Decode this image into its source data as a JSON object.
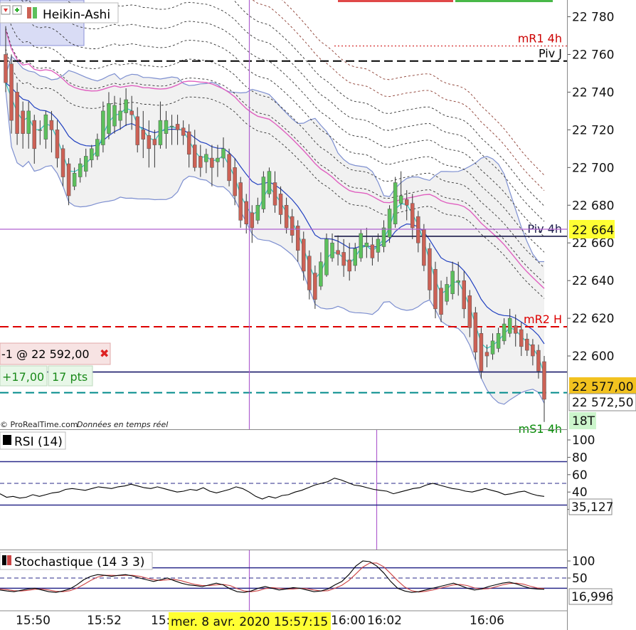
{
  "chart_data": [
    {
      "type": "candlestick",
      "title": "Heikin-Ashi",
      "y_axis_ticks": [
        "22 780",
        "22 760",
        "22 740",
        "22 720",
        "22 700",
        "22 680",
        "22 660",
        "22 640",
        "22 620",
        "22 600"
      ],
      "ylim": [
        22563,
        22787
      ],
      "x_tick_labels": [
        "15:50",
        "15:52",
        "15:",
        "16:00",
        "16:02",
        "16:06"
      ],
      "crosshair_time_label": "mer. 8 avr. 2020 15:57:15",
      "crosshair_price_label": "22 664",
      "current_price_label": "22 577,00",
      "second_price_label": "22 572,50",
      "countdown_label": "18T",
      "levels": [
        {
          "label": "mR1 4h",
          "value": 22764.5,
          "color": "#cc0000",
          "style": "dotted"
        },
        {
          "label": "Piv J",
          "value": 22756.5,
          "color": "#000000",
          "style": "dashed"
        },
        {
          "label": "Piv 4h",
          "value": 22663.5,
          "color": "#1a1a4a",
          "style": "solid"
        },
        {
          "label": "mR2 H",
          "value": 22615.5,
          "color": "#dd0000",
          "style": "dashed"
        },
        {
          "label": "",
          "value": 22591.5,
          "color": "#1a1a6a",
          "style": "solid"
        },
        {
          "label": "",
          "value": 22580.5,
          "color": "#008b8b",
          "style": "dashed"
        },
        {
          "label": "mS1 4h",
          "value": 22562,
          "color": "#008800",
          "style": "solid"
        }
      ],
      "candles": [
        {
          "o": 22760,
          "h": 22775,
          "l": 22740,
          "c": 22745
        },
        {
          "o": 22755,
          "h": 22760,
          "l": 22718,
          "c": 22725
        },
        {
          "o": 22740,
          "h": 22745,
          "l": 22712,
          "c": 22718
        },
        {
          "o": 22730,
          "h": 22735,
          "l": 22710,
          "c": 22718
        },
        {
          "o": 22718,
          "h": 22735,
          "l": 22710,
          "c": 22730
        },
        {
          "o": 22725,
          "h": 22728,
          "l": 22702,
          "c": 22710
        },
        {
          "o": 22720,
          "h": 22725,
          "l": 22712,
          "c": 22720
        },
        {
          "o": 22715,
          "h": 22730,
          "l": 22710,
          "c": 22728
        },
        {
          "o": 22725,
          "h": 22730,
          "l": 22708,
          "c": 22720
        },
        {
          "o": 22720,
          "h": 22725,
          "l": 22700,
          "c": 22705
        },
        {
          "o": 22710,
          "h": 22712,
          "l": 22690,
          "c": 22695
        },
        {
          "o": 22702,
          "h": 22705,
          "l": 22680,
          "c": 22685
        },
        {
          "o": 22690,
          "h": 22700,
          "l": 22688,
          "c": 22697
        },
        {
          "o": 22695,
          "h": 22705,
          "l": 22692,
          "c": 22702
        },
        {
          "o": 22698,
          "h": 22710,
          "l": 22695,
          "c": 22706
        },
        {
          "o": 22704,
          "h": 22712,
          "l": 22700,
          "c": 22710
        },
        {
          "o": 22706,
          "h": 22718,
          "l": 22704,
          "c": 22715
        },
        {
          "o": 22712,
          "h": 22735,
          "l": 22708,
          "c": 22730
        },
        {
          "o": 22718,
          "h": 22740,
          "l": 22715,
          "c": 22734
        },
        {
          "o": 22722,
          "h": 22738,
          "l": 22718,
          "c": 22733
        },
        {
          "o": 22725,
          "h": 22737,
          "l": 22720,
          "c": 22730
        },
        {
          "o": 22729,
          "h": 22742,
          "l": 22722,
          "c": 22736
        },
        {
          "o": 22730,
          "h": 22738,
          "l": 22720,
          "c": 22728
        },
        {
          "o": 22727,
          "h": 22732,
          "l": 22708,
          "c": 22712
        },
        {
          "o": 22720,
          "h": 22730,
          "l": 22705,
          "c": 22715
        },
        {
          "o": 22717,
          "h": 22725,
          "l": 22700,
          "c": 22710
        },
        {
          "o": 22715,
          "h": 22720,
          "l": 22700,
          "c": 22712
        },
        {
          "o": 22712,
          "h": 22735,
          "l": 22710,
          "c": 22725
        },
        {
          "o": 22718,
          "h": 22730,
          "l": 22710,
          "c": 22725
        },
        {
          "o": 22722,
          "h": 22728,
          "l": 22712,
          "c": 22722
        },
        {
          "o": 22723,
          "h": 22728,
          "l": 22712,
          "c": 22720
        },
        {
          "o": 22721,
          "h": 22725,
          "l": 22712,
          "c": 22717
        },
        {
          "o": 22719,
          "h": 22723,
          "l": 22700,
          "c": 22707
        },
        {
          "o": 22712,
          "h": 22720,
          "l": 22698,
          "c": 22700
        },
        {
          "o": 22706,
          "h": 22712,
          "l": 22695,
          "c": 22700
        },
        {
          "o": 22703,
          "h": 22710,
          "l": 22697,
          "c": 22707
        },
        {
          "o": 22705,
          "h": 22712,
          "l": 22690,
          "c": 22700
        },
        {
          "o": 22703,
          "h": 22712,
          "l": 22695,
          "c": 22705
        },
        {
          "o": 22705,
          "h": 22716,
          "l": 22700,
          "c": 22710
        },
        {
          "o": 22707,
          "h": 22710,
          "l": 22690,
          "c": 22693
        },
        {
          "o": 22700,
          "h": 22705,
          "l": 22680,
          "c": 22685
        },
        {
          "o": 22692,
          "h": 22695,
          "l": 22668,
          "c": 22672
        },
        {
          "o": 22682,
          "h": 22686,
          "l": 22665,
          "c": 22670
        },
        {
          "o": 22676,
          "h": 22680,
          "l": 22660,
          "c": 22668
        },
        {
          "o": 22672,
          "h": 22684,
          "l": 22670,
          "c": 22680
        },
        {
          "o": 22678,
          "h": 22698,
          "l": 22676,
          "c": 22695
        },
        {
          "o": 22686,
          "h": 22700,
          "l": 22684,
          "c": 22698
        },
        {
          "o": 22692,
          "h": 22698,
          "l": 22676,
          "c": 22680
        },
        {
          "o": 22686,
          "h": 22690,
          "l": 22670,
          "c": 22675
        },
        {
          "o": 22680,
          "h": 22684,
          "l": 22665,
          "c": 22668
        },
        {
          "o": 22674,
          "h": 22678,
          "l": 22660,
          "c": 22664
        },
        {
          "o": 22669,
          "h": 22672,
          "l": 22650,
          "c": 22656
        },
        {
          "o": 22662,
          "h": 22666,
          "l": 22640,
          "c": 22645
        },
        {
          "o": 22653,
          "h": 22656,
          "l": 22630,
          "c": 22635
        },
        {
          "o": 22644,
          "h": 22648,
          "l": 22625,
          "c": 22630
        },
        {
          "o": 22637,
          "h": 22655,
          "l": 22635,
          "c": 22650
        },
        {
          "o": 22643,
          "h": 22665,
          "l": 22642,
          "c": 22662
        },
        {
          "o": 22652,
          "h": 22665,
          "l": 22650,
          "c": 22660
        },
        {
          "o": 22656,
          "h": 22664,
          "l": 22648,
          "c": 22654
        },
        {
          "o": 22655,
          "h": 22662,
          "l": 22642,
          "c": 22648
        },
        {
          "o": 22651,
          "h": 22660,
          "l": 22640,
          "c": 22645
        },
        {
          "o": 22648,
          "h": 22660,
          "l": 22645,
          "c": 22657
        },
        {
          "o": 22652,
          "h": 22667,
          "l": 22650,
          "c": 22665
        },
        {
          "o": 22658,
          "h": 22668,
          "l": 22652,
          "c": 22660
        },
        {
          "o": 22659,
          "h": 22663,
          "l": 22648,
          "c": 22652
        },
        {
          "o": 22655,
          "h": 22665,
          "l": 22650,
          "c": 22662
        },
        {
          "o": 22658,
          "h": 22672,
          "l": 22655,
          "c": 22668
        },
        {
          "o": 22663,
          "h": 22680,
          "l": 22660,
          "c": 22678
        },
        {
          "o": 22670,
          "h": 22695,
          "l": 22668,
          "c": 22692
        },
        {
          "o": 22681,
          "h": 22698,
          "l": 22678,
          "c": 22685
        },
        {
          "o": 22683,
          "h": 22688,
          "l": 22672,
          "c": 22680
        },
        {
          "o": 22681,
          "h": 22686,
          "l": 22662,
          "c": 22668
        },
        {
          "o": 22674,
          "h": 22677,
          "l": 22655,
          "c": 22660
        },
        {
          "o": 22667,
          "h": 22670,
          "l": 22645,
          "c": 22648
        },
        {
          "o": 22657,
          "h": 22660,
          "l": 22630,
          "c": 22635
        },
        {
          "o": 22646,
          "h": 22650,
          "l": 22620,
          "c": 22625
        },
        {
          "o": 22636,
          "h": 22640,
          "l": 22618,
          "c": 22622
        },
        {
          "o": 22629,
          "h": 22642,
          "l": 22627,
          "c": 22638
        },
        {
          "o": 22633,
          "h": 22650,
          "l": 22630,
          "c": 22645
        },
        {
          "o": 22639,
          "h": 22650,
          "l": 22632,
          "c": 22640
        },
        {
          "o": 22640,
          "h": 22645,
          "l": 22620,
          "c": 22625
        },
        {
          "o": 22632,
          "h": 22635,
          "l": 22610,
          "c": 22615
        },
        {
          "o": 22623,
          "h": 22626,
          "l": 22598,
          "c": 22602
        },
        {
          "o": 22612,
          "h": 22615,
          "l": 22588,
          "c": 22592
        },
        {
          "o": 22602,
          "h": 22606,
          "l": 22594,
          "c": 22600
        },
        {
          "o": 22601,
          "h": 22612,
          "l": 22598,
          "c": 22608
        },
        {
          "o": 22604,
          "h": 22615,
          "l": 22602,
          "c": 22612
        },
        {
          "o": 22608,
          "h": 22620,
          "l": 22606,
          "c": 22617
        },
        {
          "o": 22612,
          "h": 22625,
          "l": 22610,
          "c": 22620
        },
        {
          "o": 22616,
          "h": 22622,
          "l": 22605,
          "c": 22612
        },
        {
          "o": 22614,
          "h": 22618,
          "l": 22600,
          "c": 22605
        },
        {
          "o": 22609,
          "h": 22612,
          "l": 22600,
          "c": 22603
        },
        {
          "o": 22606,
          "h": 22609,
          "l": 22595,
          "c": 22600
        },
        {
          "o": 22603,
          "h": 22606,
          "l": 22588,
          "c": 22592
        },
        {
          "o": 22597,
          "h": 22600,
          "l": 22565,
          "c": 22577
        }
      ]
    },
    {
      "type": "line",
      "title": "RSI (14)",
      "y_axis_ticks": [
        "100",
        "80",
        "60",
        "40",
        "20"
      ],
      "ylim": [
        0,
        100
      ],
      "value_label": "35,127",
      "levels": [
        75,
        50,
        25
      ],
      "values": [
        38,
        34,
        35,
        33,
        34,
        37,
        35,
        37,
        39,
        40,
        43,
        44,
        43,
        42,
        44,
        46,
        45,
        44,
        46,
        47,
        49,
        47,
        45,
        44,
        46,
        44,
        42,
        40,
        41,
        43,
        42,
        45,
        41,
        39,
        41,
        43,
        46,
        44,
        40,
        35,
        32,
        35,
        33,
        36,
        37,
        40,
        42,
        45,
        48,
        50,
        52,
        56,
        54,
        51,
        48,
        47,
        45,
        43,
        42,
        41,
        38,
        40,
        42,
        44,
        45,
        48,
        50,
        48,
        46,
        44,
        43,
        41,
        40,
        42,
        44,
        42,
        40,
        37,
        38,
        40,
        41,
        38,
        36,
        35
      ]
    },
    {
      "type": "line",
      "title": "Stochastique (14 3 3)",
      "y_axis_ticks": [
        "100",
        "50"
      ],
      "ylim": [
        0,
        100
      ],
      "value_label": "16,996",
      "levels": [
        80,
        50,
        20
      ],
      "k_values": [
        15,
        12,
        10,
        14,
        18,
        20,
        15,
        10,
        8,
        12,
        18,
        30,
        45,
        55,
        60,
        58,
        55,
        58,
        60,
        56,
        50,
        45,
        40,
        45,
        50,
        42,
        35,
        30,
        28,
        25,
        30,
        35,
        30,
        18,
        10,
        8,
        12,
        20,
        25,
        20,
        15,
        18,
        22,
        20,
        15,
        10,
        12,
        18,
        30,
        40,
        60,
        85,
        100,
        98,
        85,
        65,
        40,
        20,
        12,
        8,
        10,
        15,
        20,
        25,
        30,
        35,
        28,
        20,
        15,
        18,
        25,
        30,
        35,
        38,
        33,
        26,
        20,
        18,
        17
      ],
      "d_values": [
        18,
        16,
        13,
        12,
        14,
        17,
        18,
        15,
        11,
        10,
        13,
        20,
        31,
        43,
        53,
        58,
        58,
        57,
        58,
        58,
        55,
        50,
        45,
        43,
        45,
        46,
        42,
        36,
        31,
        28,
        28,
        30,
        31,
        28,
        19,
        12,
        10,
        13,
        19,
        22,
        20,
        18,
        18,
        20,
        19,
        15,
        12,
        13,
        20,
        29,
        43,
        62,
        82,
        94,
        94,
        83,
        63,
        42,
        24,
        13,
        9,
        11,
        15,
        20,
        25,
        30,
        31,
        28,
        21,
        18,
        19,
        24,
        30,
        34,
        35,
        32,
        26,
        21,
        19
      ]
    }
  ],
  "header": {
    "title": "Heikin-Ashi"
  },
  "order_box": {
    "position": "-1 @ 22 592,00",
    "pnl_value": "+17,00",
    "pnl_points": "17 pts",
    "close_symbol": "✖"
  },
  "footer_credit": {
    "source": "© ProRealTime.com",
    "note": "Données en temps réel"
  },
  "colors": {
    "up": "#5cc05c",
    "down": "#cc6155",
    "bb_line": "#7d8fd0",
    "bb_fill": "#f1f1f1",
    "ma_pink": "#e060c0",
    "ma_blue": "#2040c0",
    "ma_cyan": "#30c8c0",
    "rsi_line": "#000000",
    "stoch_k": "#000000",
    "stoch_d": "#cc4444",
    "highlight": "#ffff33"
  }
}
